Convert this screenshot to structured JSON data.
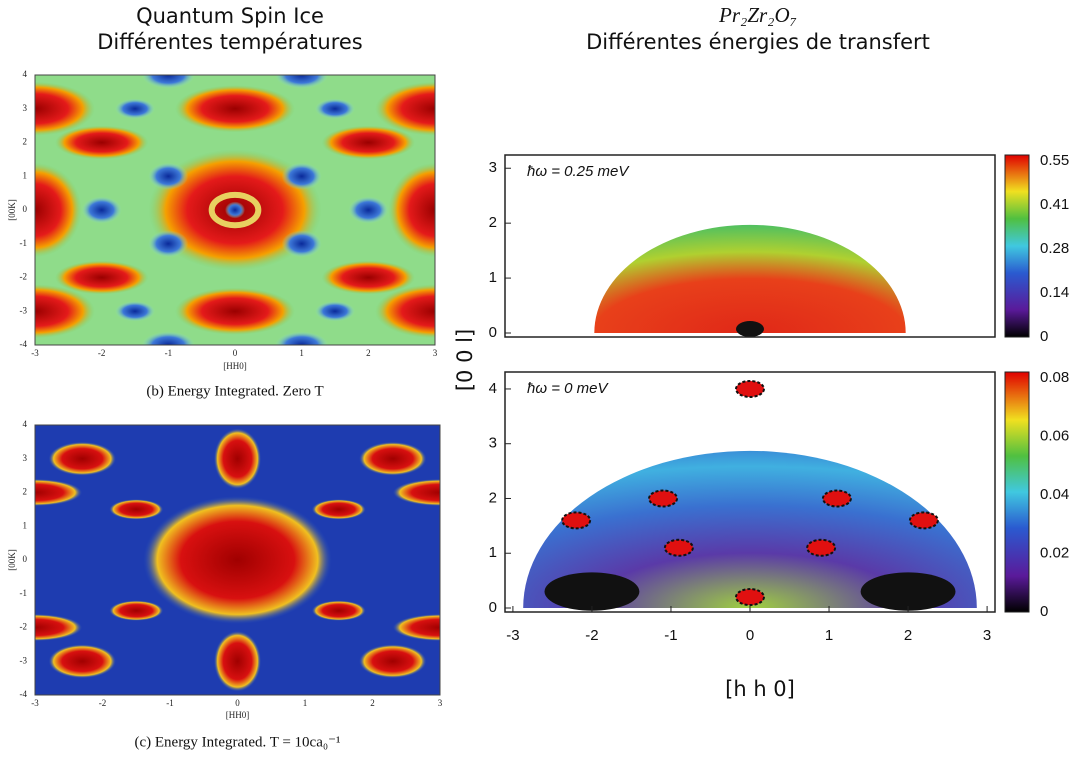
{
  "left": {
    "title": [
      "Quantum Spin Ice",
      "Différentes températures"
    ],
    "panel_b": {
      "y_label": "[00K]",
      "x_label": "[HH0]",
      "yticks": [
        "4",
        "3",
        "2",
        "1",
        "0",
        "-1",
        "-2",
        "-3",
        "-4"
      ],
      "xticks": [
        "-3",
        "-2",
        "-1",
        "0",
        "1",
        "2",
        "3"
      ],
      "caption": "(b) Energy Integrated. Zero T"
    },
    "panel_c": {
      "y_label": "[00K]",
      "x_label": "[HH0]",
      "yticks": [
        "4",
        "3",
        "2",
        "1",
        "0",
        "-1",
        "-2",
        "-3",
        "-4"
      ],
      "xticks": [
        "-3",
        "-2",
        "-1",
        "0",
        "1",
        "2",
        "3"
      ],
      "caption": "(c) Energy Integrated. T = 10ca₀⁻¹"
    }
  },
  "right": {
    "title": [
      "Pr₂Zr₂O₇",
      "Différentes énergies de transfert"
    ],
    "y_label": "[0 0 l]",
    "x_label": "[h h 0]",
    "top": {
      "annotation": "ħω = 0.25 meV",
      "yticks": [
        "0",
        "1",
        "2",
        "3"
      ],
      "colorbar_ticks": [
        "0.55",
        "0.41",
        "0.28",
        "0.14",
        "0"
      ]
    },
    "bottom": {
      "annotation": "ħω = 0 meV",
      "yticks": [
        "0",
        "1",
        "2",
        "3",
        "4"
      ],
      "xticks": [
        "-3",
        "-2",
        "-1",
        "0",
        "1",
        "2",
        "3"
      ],
      "colorbar_ticks": [
        "0.08",
        "0.06",
        "0.04",
        "0.02",
        "0"
      ]
    }
  }
}
